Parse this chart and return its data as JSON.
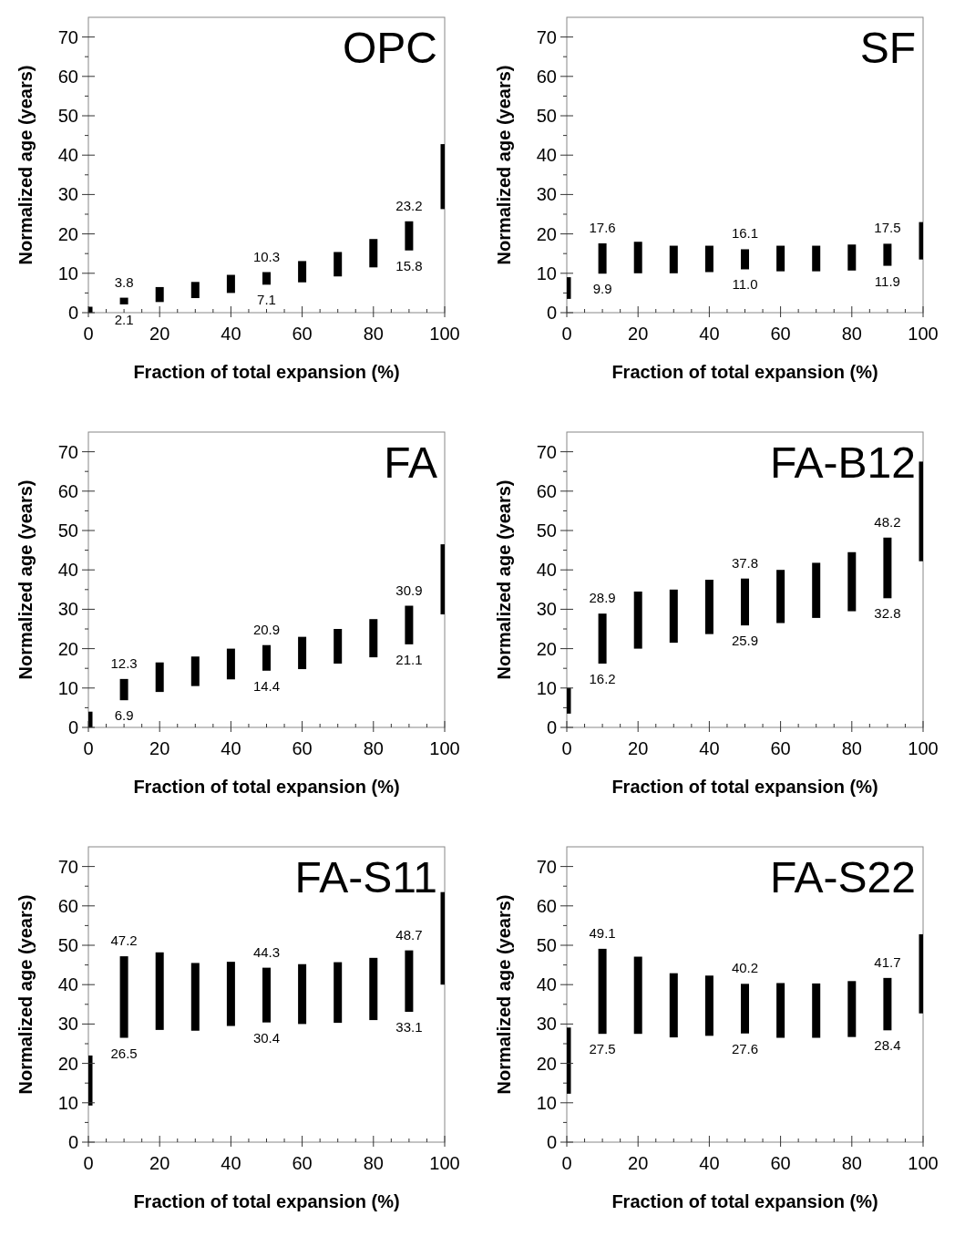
{
  "chart_data": [
    {
      "type": "bar",
      "title": "OPC",
      "xlabel": "Fraction of total expansion (%)",
      "ylabel": "Normalized age (years)",
      "color": "#000000",
      "xlim": [
        0,
        100
      ],
      "ylim": [
        0,
        75
      ],
      "x": [
        0,
        10,
        20,
        30,
        40,
        50,
        60,
        70,
        80,
        90,
        100
      ],
      "base": [
        0,
        2.1,
        2.7,
        3.7,
        5,
        7.1,
        7.7,
        9.2,
        11.5,
        15.8,
        26.3
      ],
      "values": [
        1.5,
        1.7,
        3.8,
        4.1,
        4.6,
        3.2,
        5.4,
        6.2,
        7.2,
        7.4,
        16.5
      ],
      "annotations": [
        {
          "text": "3.8",
          "x": 10,
          "y": 3.8
        },
        {
          "text": "2.1",
          "x": 10,
          "y": 2.1
        },
        {
          "text": "10.3",
          "x": 50,
          "y": 10.3
        },
        {
          "text": "7.1",
          "x": 50,
          "y": 7.1
        },
        {
          "text": "23.2",
          "x": 90,
          "y": 23.2
        },
        {
          "text": "15.8",
          "x": 90,
          "y": 15.8
        }
      ],
      "xticks": [
        0,
        {
          "value": 5,
          "label": null
        },
        {
          "value": 10,
          "label": null
        },
        {
          "value": 15,
          "label": null
        },
        20,
        {
          "value": 25,
          "label": null
        },
        {
          "value": 30,
          "label": null
        },
        {
          "value": 35,
          "label": null
        },
        40,
        {
          "value": 45,
          "label": null
        },
        {
          "value": 50,
          "label": null
        },
        {
          "value": 55,
          "label": null
        },
        60,
        {
          "value": 65,
          "label": null
        },
        {
          "value": 70,
          "label": null
        },
        {
          "value": 75,
          "label": null
        },
        80,
        {
          "value": 85,
          "label": null
        },
        {
          "value": 90,
          "label": null
        },
        {
          "value": 95,
          "label": null
        },
        100
      ],
      "yticks": [
        0,
        {
          "value": 5,
          "label": null
        },
        10,
        {
          "value": 15,
          "label": null
        },
        20,
        {
          "value": 25,
          "label": null
        },
        30,
        {
          "value": 35,
          "label": null
        },
        40,
        {
          "value": 45,
          "label": null
        },
        50,
        {
          "value": 55,
          "label": null
        },
        60,
        {
          "value": 65,
          "label": null
        },
        70
      ]
    },
    {
      "type": "bar",
      "title": "SF",
      "xlabel": "Fraction of total expansion (%)",
      "ylabel": "Normalized age (years)",
      "color": "#000000",
      "xlim": [
        0,
        100
      ],
      "ylim": [
        0,
        75
      ],
      "x": [
        0,
        10,
        20,
        30,
        40,
        50,
        60,
        70,
        80,
        90,
        100
      ],
      "base": [
        3.5,
        9.9,
        10,
        10,
        10.3,
        11,
        10.5,
        10.5,
        10.7,
        11.9,
        13.5
      ],
      "values": [
        5.5,
        7.7,
        8,
        7,
        6.7,
        5.1,
        6.5,
        6.5,
        6.6,
        5.6,
        9.5
      ],
      "annotations": [
        {
          "text": "17.6",
          "x": 10,
          "y": 17.6
        },
        {
          "text": "9.9",
          "x": 10,
          "y": 9.9
        },
        {
          "text": "16.1",
          "x": 50,
          "y": 16.1
        },
        {
          "text": "11.0",
          "x": 50,
          "y": 11
        },
        {
          "text": "17.5",
          "x": 90,
          "y": 17.5
        },
        {
          "text": "11.9",
          "x": 90,
          "y": 11.9
        }
      ],
      "xticks": [
        0,
        {
          "value": 5,
          "label": null
        },
        {
          "value": 10,
          "label": null
        },
        {
          "value": 15,
          "label": null
        },
        20,
        {
          "value": 25,
          "label": null
        },
        {
          "value": 30,
          "label": null
        },
        {
          "value": 35,
          "label": null
        },
        40,
        {
          "value": 45,
          "label": null
        },
        {
          "value": 50,
          "label": null
        },
        {
          "value": 55,
          "label": null
        },
        60,
        {
          "value": 65,
          "label": null
        },
        {
          "value": 70,
          "label": null
        },
        {
          "value": 75,
          "label": null
        },
        80,
        {
          "value": 85,
          "label": null
        },
        {
          "value": 90,
          "label": null
        },
        {
          "value": 95,
          "label": null
        },
        100
      ],
      "yticks": [
        0,
        {
          "value": 5,
          "label": null
        },
        10,
        {
          "value": 15,
          "label": null
        },
        20,
        {
          "value": 25,
          "label": null
        },
        30,
        {
          "value": 35,
          "label": null
        },
        40,
        {
          "value": 45,
          "label": null
        },
        50,
        {
          "value": 55,
          "label": null
        },
        60,
        {
          "value": 65,
          "label": null
        },
        70
      ]
    },
    {
      "type": "bar",
      "title": "FA",
      "xlabel": "Fraction of total expansion (%)",
      "ylabel": "Normalized age (years)",
      "color": "#000000",
      "xlim": [
        0,
        100
      ],
      "ylim": [
        0,
        75
      ],
      "x": [
        0,
        10,
        20,
        30,
        40,
        50,
        60,
        70,
        80,
        90,
        100
      ],
      "base": [
        0,
        6.9,
        9,
        10.5,
        12.2,
        14.4,
        14.8,
        16.2,
        17.8,
        21.1,
        28.7
      ],
      "values": [
        4,
        5.4,
        7.5,
        7.5,
        7.8,
        6.5,
        8.2,
        8.8,
        9.7,
        9.8,
        17.8
      ],
      "annotations": [
        {
          "text": "12.3",
          "x": 10,
          "y": 12.3
        },
        {
          "text": "6.9",
          "x": 10,
          "y": 6.9
        },
        {
          "text": "20.9",
          "x": 50,
          "y": 20.9
        },
        {
          "text": "14.4",
          "x": 50,
          "y": 14.4
        },
        {
          "text": "30.9",
          "x": 90,
          "y": 30.9
        },
        {
          "text": "21.1",
          "x": 90,
          "y": 21.1
        }
      ],
      "xticks": [
        0,
        {
          "value": 5,
          "label": null
        },
        {
          "value": 10,
          "label": null
        },
        {
          "value": 15,
          "label": null
        },
        20,
        {
          "value": 25,
          "label": null
        },
        {
          "value": 30,
          "label": null
        },
        {
          "value": 35,
          "label": null
        },
        40,
        {
          "value": 45,
          "label": null
        },
        {
          "value": 50,
          "label": null
        },
        {
          "value": 55,
          "label": null
        },
        60,
        {
          "value": 65,
          "label": null
        },
        {
          "value": 70,
          "label": null
        },
        {
          "value": 75,
          "label": null
        },
        80,
        {
          "value": 85,
          "label": null
        },
        {
          "value": 90,
          "label": null
        },
        {
          "value": 95,
          "label": null
        },
        100
      ],
      "yticks": [
        0,
        {
          "value": 5,
          "label": null
        },
        10,
        {
          "value": 15,
          "label": null
        },
        20,
        {
          "value": 25,
          "label": null
        },
        30,
        {
          "value": 35,
          "label": null
        },
        40,
        {
          "value": 45,
          "label": null
        },
        50,
        {
          "value": 55,
          "label": null
        },
        60,
        {
          "value": 65,
          "label": null
        },
        70
      ]
    },
    {
      "type": "bar",
      "title": "FA-B12",
      "xlabel": "Fraction of total expansion (%)",
      "ylabel": "Normalized age (years)",
      "color": "#000000",
      "xlim": [
        0,
        100
      ],
      "ylim": [
        0,
        75
      ],
      "x": [
        0,
        10,
        20,
        30,
        40,
        50,
        60,
        70,
        80,
        90,
        100
      ],
      "base": [
        3.5,
        16.2,
        20,
        21.5,
        23.7,
        25.9,
        26.5,
        27.8,
        29.5,
        32.8,
        42.2
      ],
      "values": [
        6.5,
        12.7,
        14.5,
        13.5,
        13.8,
        11.9,
        13.5,
        14,
        15,
        15.4,
        25.3
      ],
      "annotations": [
        {
          "text": "28.9",
          "x": 10,
          "y": 28.9
        },
        {
          "text": "16.2",
          "x": 10,
          "y": 16.2
        },
        {
          "text": "37.8",
          "x": 50,
          "y": 37.8
        },
        {
          "text": "25.9",
          "x": 50,
          "y": 25.9
        },
        {
          "text": "48.2",
          "x": 90,
          "y": 48.2
        },
        {
          "text": "32.8",
          "x": 90,
          "y": 32.8
        }
      ],
      "xticks": [
        0,
        {
          "value": 5,
          "label": null
        },
        {
          "value": 10,
          "label": null
        },
        {
          "value": 15,
          "label": null
        },
        20,
        {
          "value": 25,
          "label": null
        },
        {
          "value": 30,
          "label": null
        },
        {
          "value": 35,
          "label": null
        },
        40,
        {
          "value": 45,
          "label": null
        },
        {
          "value": 50,
          "label": null
        },
        {
          "value": 55,
          "label": null
        },
        60,
        {
          "value": 65,
          "label": null
        },
        {
          "value": 70,
          "label": null
        },
        {
          "value": 75,
          "label": null
        },
        80,
        {
          "value": 85,
          "label": null
        },
        {
          "value": 90,
          "label": null
        },
        {
          "value": 95,
          "label": null
        },
        100
      ],
      "yticks": [
        0,
        {
          "value": 5,
          "label": null
        },
        10,
        {
          "value": 15,
          "label": null
        },
        20,
        {
          "value": 25,
          "label": null
        },
        30,
        {
          "value": 35,
          "label": null
        },
        40,
        {
          "value": 45,
          "label": null
        },
        50,
        {
          "value": 55,
          "label": null
        },
        60,
        {
          "value": 65,
          "label": null
        },
        70
      ]
    },
    {
      "type": "bar",
      "title": "FA-S11",
      "xlabel": "Fraction of total expansion (%)",
      "ylabel": "Normalized age (years)",
      "color": "#000000",
      "xlim": [
        0,
        100
      ],
      "ylim": [
        0,
        75
      ],
      "x": [
        0,
        10,
        20,
        30,
        40,
        50,
        60,
        70,
        80,
        90,
        100
      ],
      "base": [
        9.3,
        26.5,
        28.5,
        28.3,
        29.5,
        30.4,
        30,
        30.3,
        31,
        33.1,
        40
      ],
      "values": [
        12.7,
        20.7,
        19.7,
        17.2,
        16.3,
        13.9,
        15.2,
        15.4,
        15.8,
        15.6,
        23.5
      ],
      "annotations": [
        {
          "text": "47.2",
          "x": 10,
          "y": 47.2
        },
        {
          "text": "26.5",
          "x": 10,
          "y": 26.5
        },
        {
          "text": "44.3",
          "x": 50,
          "y": 44.3
        },
        {
          "text": "30.4",
          "x": 50,
          "y": 30.4
        },
        {
          "text": "48.7",
          "x": 90,
          "y": 48.7
        },
        {
          "text": "33.1",
          "x": 90,
          "y": 33.1
        }
      ],
      "xticks": [
        0,
        {
          "value": 5,
          "label": null
        },
        {
          "value": 10,
          "label": null
        },
        {
          "value": 15,
          "label": null
        },
        20,
        {
          "value": 25,
          "label": null
        },
        {
          "value": 30,
          "label": null
        },
        {
          "value": 35,
          "label": null
        },
        40,
        {
          "value": 45,
          "label": null
        },
        {
          "value": 50,
          "label": null
        },
        {
          "value": 55,
          "label": null
        },
        60,
        {
          "value": 65,
          "label": null
        },
        {
          "value": 70,
          "label": null
        },
        {
          "value": 75,
          "label": null
        },
        80,
        {
          "value": 85,
          "label": null
        },
        {
          "value": 90,
          "label": null
        },
        {
          "value": 95,
          "label": null
        },
        100
      ],
      "yticks": [
        0,
        {
          "value": 5,
          "label": null
        },
        10,
        {
          "value": 15,
          "label": null
        },
        20,
        {
          "value": 25,
          "label": null
        },
        30,
        {
          "value": 35,
          "label": null
        },
        40,
        {
          "value": 45,
          "label": null
        },
        50,
        {
          "value": 55,
          "label": null
        },
        60,
        {
          "value": 65,
          "label": null
        },
        70
      ]
    },
    {
      "type": "bar",
      "title": "FA-S22",
      "xlabel": "Fraction of total expansion (%)",
      "ylabel": "Normalized age (years)",
      "color": "#000000",
      "xlim": [
        0,
        100
      ],
      "ylim": [
        0,
        75
      ],
      "x": [
        0,
        10,
        20,
        30,
        40,
        50,
        60,
        70,
        80,
        90,
        100
      ],
      "base": [
        12.3,
        27.5,
        27.5,
        26.6,
        27,
        27.6,
        26.5,
        26.5,
        26.7,
        28.4,
        32.7
      ],
      "values": [
        16.8,
        21.6,
        19.6,
        16.3,
        15.3,
        12.6,
        13.9,
        13.8,
        14.2,
        13.3,
        20.1
      ],
      "annotations": [
        {
          "text": "49.1",
          "x": 10,
          "y": 49.1
        },
        {
          "text": "27.5",
          "x": 10,
          "y": 27.5
        },
        {
          "text": "40.2",
          "x": 50,
          "y": 40.2
        },
        {
          "text": "27.6",
          "x": 50,
          "y": 27.6
        },
        {
          "text": "41.7",
          "x": 90,
          "y": 41.7
        },
        {
          "text": "28.4",
          "x": 90,
          "y": 28.4
        }
      ],
      "xticks": [
        0,
        {
          "value": 5,
          "label": null
        },
        {
          "value": 10,
          "label": null
        },
        {
          "value": 15,
          "label": null
        },
        20,
        {
          "value": 25,
          "label": null
        },
        {
          "value": 30,
          "label": null
        },
        {
          "value": 35,
          "label": null
        },
        40,
        {
          "value": 45,
          "label": null
        },
        {
          "value": 50,
          "label": null
        },
        {
          "value": 55,
          "label": null
        },
        60,
        {
          "value": 65,
          "label": null
        },
        {
          "value": 70,
          "label": null
        },
        {
          "value": 75,
          "label": null
        },
        80,
        {
          "value": 85,
          "label": null
        },
        {
          "value": 90,
          "label": null
        },
        {
          "value": 95,
          "label": null
        },
        100
      ],
      "yticks": [
        0,
        {
          "value": 5,
          "label": null
        },
        10,
        {
          "value": 15,
          "label": null
        },
        20,
        {
          "value": 25,
          "label": null
        },
        30,
        {
          "value": 35,
          "label": null
        },
        40,
        {
          "value": 45,
          "label": null
        },
        50,
        {
          "value": 55,
          "label": null
        },
        60,
        {
          "value": 65,
          "label": null
        },
        70
      ]
    }
  ]
}
